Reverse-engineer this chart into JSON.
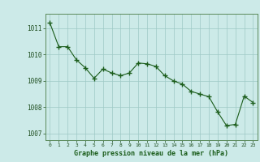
{
  "x": [
    0,
    1,
    2,
    3,
    4,
    5,
    6,
    7,
    8,
    9,
    10,
    11,
    12,
    13,
    14,
    15,
    16,
    17,
    18,
    19,
    20,
    21,
    22,
    23
  ],
  "y": [
    1011.2,
    1010.3,
    1010.3,
    1009.8,
    1009.5,
    1009.1,
    1009.45,
    1009.3,
    1009.2,
    1009.3,
    1009.68,
    1009.65,
    1009.55,
    1009.2,
    1009.0,
    1008.88,
    1008.6,
    1008.5,
    1008.4,
    1007.82,
    1007.3,
    1007.35,
    1008.42,
    1008.18
  ],
  "line_color": "#1a5c1a",
  "marker_color": "#1a5c1a",
  "bg_color": "#cceae8",
  "grid_color": "#9dc8c5",
  "spine_color": "#5a8a5a",
  "xlabel": "Graphe pression niveau de la mer (hPa)",
  "xlabel_color": "#1a5c1a",
  "tick_color": "#1a4a1a",
  "ylim": [
    1006.75,
    1011.55
  ],
  "yticks": [
    1007,
    1008,
    1009,
    1010,
    1011
  ],
  "xticks": [
    0,
    1,
    2,
    3,
    4,
    5,
    6,
    7,
    8,
    9,
    10,
    11,
    12,
    13,
    14,
    15,
    16,
    17,
    18,
    19,
    20,
    21,
    22,
    23
  ],
  "xlim": [
    -0.5,
    23.5
  ],
  "figsize": [
    3.2,
    2.0
  ],
  "dpi": 100
}
